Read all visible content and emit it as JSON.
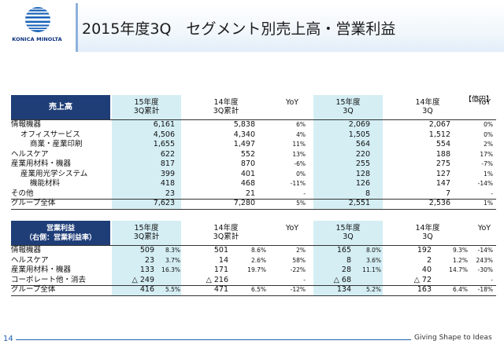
{
  "brand": "KONICA MINOLTA",
  "title": "2015年度3Q　セグメント別売上高・営業利益",
  "unit": "【億円】",
  "sales": {
    "label": "売上高",
    "h": [
      [
        "15年度",
        "3Q累計"
      ],
      [
        "14年度",
        "3Q累計"
      ],
      [
        "",
        "YoY"
      ],
      [
        "15年度",
        "3Q"
      ],
      [
        "14年度",
        "3Q"
      ],
      [
        "",
        "YoY"
      ]
    ],
    "rows": [
      [
        "情報機器",
        "6,161",
        "5,838",
        "6%",
        "2,069",
        "2,067",
        "0%"
      ],
      [
        "オフィスサービス",
        "4,506",
        "4,340",
        "4%",
        "1,505",
        "1,512",
        "0%"
      ],
      [
        "商業・産業印刷",
        "1,655",
        "1,497",
        "11%",
        "564",
        "554",
        "2%"
      ],
      [
        "ヘルスケア",
        "622",
        "552",
        "13%",
        "220",
        "188",
        "17%"
      ],
      [
        "産業用材料・機器",
        "817",
        "870",
        "-6%",
        "255",
        "275",
        "-7%"
      ],
      [
        "産業用光学システム",
        "399",
        "401",
        "0%",
        "128",
        "127",
        "1%"
      ],
      [
        "機能材料",
        "418",
        "468",
        "-11%",
        "126",
        "147",
        "-14%"
      ],
      [
        "その他",
        "23",
        "21",
        "-",
        "8",
        "7",
        "-"
      ],
      [
        "グループ全体",
        "7,623",
        "7,280",
        "5%",
        "2,551",
        "2,536",
        "1%"
      ]
    ]
  },
  "profit": {
    "label1": "営業利益",
    "label2": "（右側：営業利益率）",
    "h": [
      [
        "15年度",
        "3Q累計"
      ],
      [
        "14年度",
        "3Q累計"
      ],
      [
        "",
        "YoY"
      ],
      [
        "15年度",
        "3Q"
      ],
      [
        "14年度",
        "3Q"
      ],
      [
        "",
        "YoY"
      ]
    ],
    "rows": [
      [
        "情報機器",
        "509",
        "8.3%",
        "501",
        "8.6%",
        "2%",
        "165",
        "8.0%",
        "192",
        "9.3%",
        "-14%"
      ],
      [
        "ヘルスケア",
        "23",
        "3.7%",
        "14",
        "2.6%",
        "58%",
        "8",
        "3.6%",
        "2",
        "1.2%",
        "243%"
      ],
      [
        "産業用材料・機器",
        "133",
        "16.3%",
        "171",
        "19.7%",
        "-22%",
        "28",
        "11.1%",
        "40",
        "14.7%",
        "-30%"
      ],
      [
        "コーポレート他・消去",
        "△ 249",
        "",
        "△ 216",
        "",
        "-",
        "△ 68",
        "",
        "△ 72",
        "",
        "-"
      ],
      [
        "グループ全体",
        "416",
        "5.5%",
        "471",
        "6.5%",
        "-12%",
        "134",
        "5.2%",
        "163",
        "6.4%",
        "-18%"
      ]
    ]
  },
  "footer": {
    "page": "14",
    "tagline": "Giving Shape to Ideas"
  }
}
